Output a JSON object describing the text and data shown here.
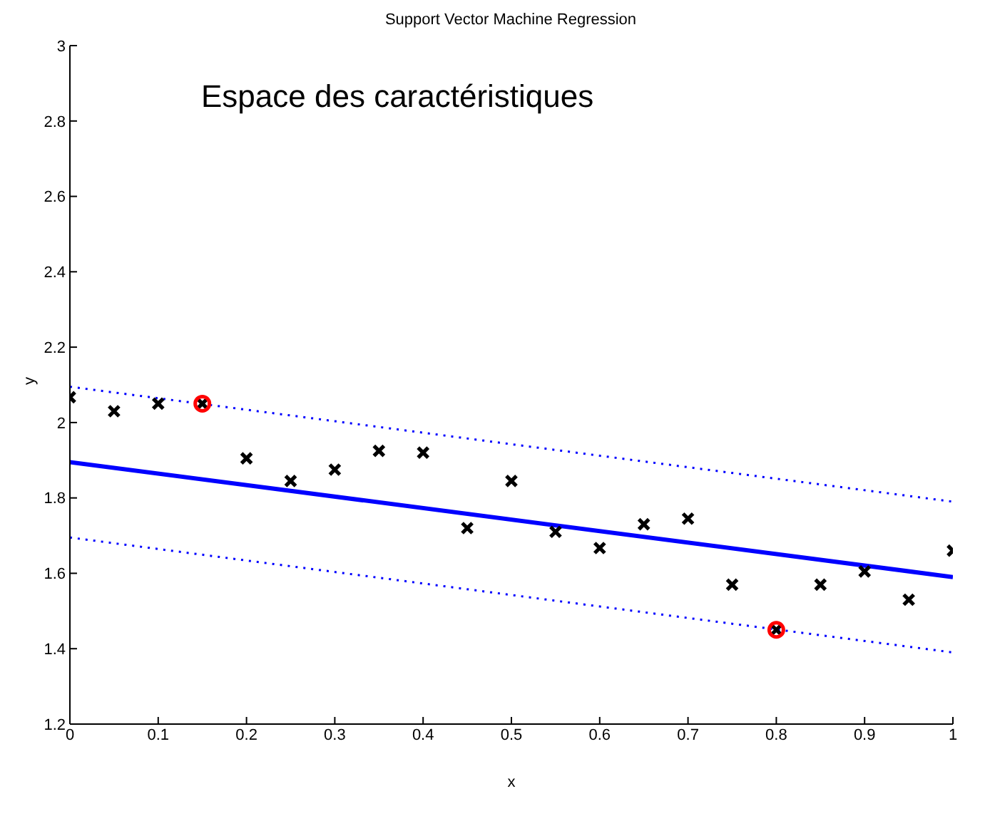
{
  "chart_data": {
    "type": "scatter",
    "title": "Support Vector Machine Regression",
    "xlabel": "x",
    "ylabel": "y",
    "annotations": [
      "Espace des caractéristiques"
    ],
    "xlim": [
      0,
      1
    ],
    "ylim": [
      1.2,
      3
    ],
    "xticks": [
      0,
      0.1,
      0.2,
      0.3,
      0.4,
      0.5,
      0.6,
      0.7,
      0.8,
      0.9,
      1
    ],
    "yticks": [
      1.2,
      1.4,
      1.6,
      1.8,
      2,
      2.2,
      2.4,
      2.6,
      2.8,
      3
    ],
    "grid": false,
    "series": [
      {
        "marker": "cross",
        "color": "#000000",
        "x": [
          0,
          0.05,
          0.1,
          0.15,
          0.2,
          0.25,
          0.3,
          0.35,
          0.4,
          0.45,
          0.5,
          0.55,
          0.6,
          0.65,
          0.7,
          0.75,
          0.8,
          0.85,
          0.9,
          0.95,
          1
        ],
        "values": [
          2.067,
          2.03,
          2.05,
          2.05,
          1.905,
          1.845,
          1.875,
          1.925,
          1.92,
          1.72,
          1.845,
          1.71,
          1.667,
          1.73,
          1.745,
          1.57,
          1.45,
          1.57,
          1.605,
          1.53,
          1.66
        ]
      },
      {
        "marker": "circle",
        "color": "#ff0000",
        "x": [
          0.15,
          0.8
        ],
        "values": [
          2.05,
          1.45
        ]
      },
      {
        "type": "line",
        "marker": "none",
        "line_style": "solid",
        "color": "#0000ff",
        "x": [
          0,
          1
        ],
        "values": [
          1.895,
          1.59
        ]
      },
      {
        "type": "line",
        "marker": "none",
        "line_style": "dotted",
        "color": "#0000ff",
        "x": [
          0,
          1
        ],
        "values": [
          2.095,
          1.79
        ]
      },
      {
        "type": "line",
        "marker": "none",
        "line_style": "dotted",
        "color": "#0000ff",
        "x": [
          0,
          1
        ],
        "values": [
          1.695,
          1.39
        ]
      }
    ]
  }
}
